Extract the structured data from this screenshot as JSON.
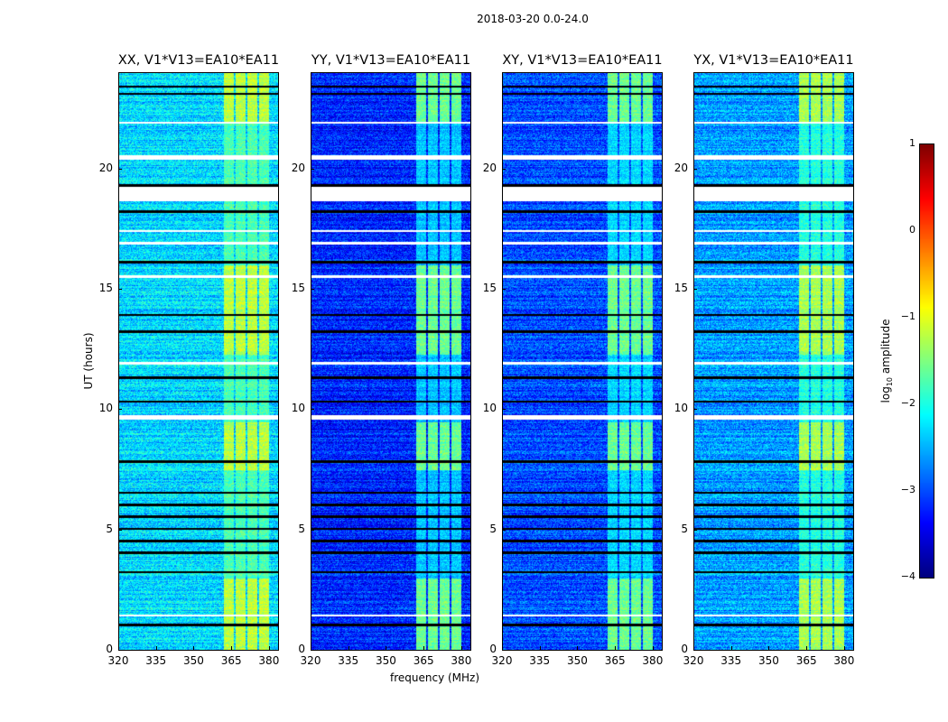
{
  "chart_data": {
    "type": "heatmap",
    "title": "2018-03-20 0.0-24.0",
    "xlabel": "frequency (MHz)",
    "ylabel": "UT (hours)",
    "xlim": [
      320,
      384
    ],
    "ylim": [
      0,
      24
    ],
    "xticks": [
      "320",
      "335",
      "350",
      "365",
      "380"
    ],
    "xtick_values": [
      320,
      335,
      350,
      365,
      380
    ],
    "yticks": [
      "0",
      "5",
      "10",
      "15",
      "20"
    ],
    "ytick_values": [
      0,
      5,
      10,
      15,
      20
    ],
    "colorbar": {
      "label_prefix": "log",
      "label_sub": "10",
      "label_suffix": " amplitude",
      "colormap": "jet",
      "range": [
        -4,
        1
      ],
      "ticks": [
        "1",
        "0",
        "−1",
        "−2",
        "−3",
        "−4"
      ],
      "tick_values": [
        1,
        0,
        -1,
        -2,
        -3,
        -4
      ]
    },
    "rfi_band_mhz": [
      362,
      381
    ],
    "bright_hours": [
      [
        0,
        3
      ],
      [
        7.5,
        9.5
      ],
      [
        12.3,
        16
      ],
      [
        22,
        24
      ]
    ],
    "flagged_white_hours": [
      [
        19.3,
        18.7
      ],
      [
        1.4,
        1.5
      ],
      [
        9.8,
        9.6
      ],
      [
        15.6,
        15.5
      ],
      [
        17.0,
        16.9
      ],
      [
        17.5,
        17.4
      ],
      [
        22.0,
        21.9
      ],
      [
        20.6,
        20.4
      ],
      [
        12.0,
        11.9
      ]
    ],
    "flagged_black_hours": [
      [
        19.4,
        19.3
      ],
      [
        23.5,
        23.4
      ],
      [
        23.2,
        23.1
      ],
      [
        4.1,
        4.0
      ],
      [
        4.6,
        4.5
      ],
      [
        5.1,
        5.0
      ],
      [
        5.6,
        5.5
      ],
      [
        6.1,
        6.0
      ],
      [
        6.6,
        6.5
      ],
      [
        3.3,
        3.2
      ],
      [
        7.9,
        7.8
      ],
      [
        10.4,
        10.3
      ],
      [
        11.4,
        11.3
      ],
      [
        13.3,
        13.2
      ],
      [
        14.0,
        13.9
      ],
      [
        16.2,
        16.1
      ],
      [
        18.3,
        18.2
      ],
      [
        1.1,
        1.0
      ]
    ],
    "panels": [
      {
        "title": "XX, V1*V13=EA10*EA11",
        "base_level": -2.3,
        "band_level": -1.2
      },
      {
        "title": "YY, V1*V13=EA10*EA11",
        "base_level": -3.2,
        "band_level": -1.6
      },
      {
        "title": "XY, V1*V13=EA10*EA11",
        "base_level": -3.0,
        "band_level": -1.6
      },
      {
        "title": "YX, V1*V13=EA10*EA11",
        "base_level": -2.6,
        "band_level": -1.3
      }
    ]
  }
}
